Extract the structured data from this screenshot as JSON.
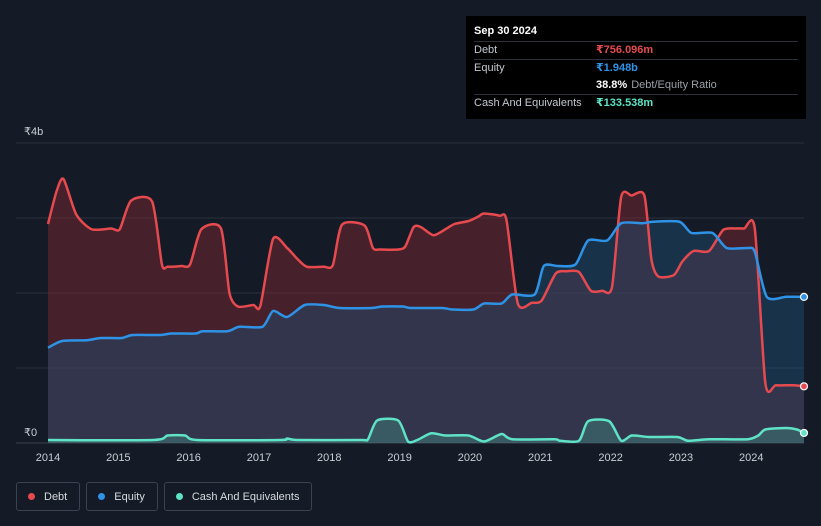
{
  "tooltip": {
    "date": "Sep 30 2024",
    "rows": [
      {
        "label": "Debt",
        "value": "₹756.096m",
        "color": "#e64a4f"
      },
      {
        "label": "Equity",
        "value": "₹1.948b",
        "color": "#2e93e6"
      },
      {
        "label": "",
        "value": "38.8%",
        "sub": "Debt/Equity Ratio",
        "color": "#ffffff"
      },
      {
        "label": "Cash And Equivalents",
        "value": "₹133.538m",
        "color": "#5ee3c6"
      }
    ]
  },
  "legend": [
    {
      "label": "Debt",
      "color": "#e64a4f"
    },
    {
      "label": "Equity",
      "color": "#2e93e6"
    },
    {
      "label": "Cash And Equivalents",
      "color": "#5ee3c6"
    }
  ],
  "chart_data": {
    "type": "area",
    "currency": "₹",
    "y_tick_labels": [
      {
        "value": 4,
        "label": "₹4b"
      },
      {
        "value": 0,
        "label": "₹0"
      }
    ],
    "ylim": [
      0,
      4
    ],
    "xlim": [
      2014.0,
      2024.75
    ],
    "x_ticks": [
      2014,
      2015,
      2016,
      2017,
      2018,
      2019,
      2020,
      2021,
      2022,
      2023,
      2024
    ],
    "grid": true,
    "legend_position": "bottom-left",
    "series": [
      {
        "name": "Debt",
        "color": "#e64a4f",
        "points": [
          [
            2014.0,
            2.92
          ],
          [
            2014.12,
            3.35
          ],
          [
            2014.22,
            3.52
          ],
          [
            2014.4,
            3.05
          ],
          [
            2014.62,
            2.85
          ],
          [
            2014.9,
            2.86
          ],
          [
            2015.02,
            2.85
          ],
          [
            2015.18,
            3.23
          ],
          [
            2015.48,
            3.22
          ],
          [
            2015.62,
            2.38
          ],
          [
            2015.7,
            2.35
          ],
          [
            2015.9,
            2.36
          ],
          [
            2016.02,
            2.38
          ],
          [
            2016.18,
            2.85
          ],
          [
            2016.46,
            2.86
          ],
          [
            2016.58,
            2.0
          ],
          [
            2016.7,
            1.82
          ],
          [
            2016.92,
            1.84
          ],
          [
            2017.02,
            1.83
          ],
          [
            2017.2,
            2.72
          ],
          [
            2017.4,
            2.6
          ],
          [
            2017.55,
            2.45
          ],
          [
            2017.68,
            2.35
          ],
          [
            2017.92,
            2.35
          ],
          [
            2018.05,
            2.37
          ],
          [
            2018.18,
            2.91
          ],
          [
            2018.5,
            2.9
          ],
          [
            2018.62,
            2.6
          ],
          [
            2018.72,
            2.58
          ],
          [
            2018.98,
            2.58
          ],
          [
            2019.08,
            2.62
          ],
          [
            2019.2,
            2.88
          ],
          [
            2019.3,
            2.88
          ],
          [
            2019.48,
            2.77
          ],
          [
            2019.65,
            2.85
          ],
          [
            2019.78,
            2.92
          ],
          [
            2019.98,
            2.96
          ],
          [
            2020.12,
            3.02
          ],
          [
            2020.2,
            3.06
          ],
          [
            2020.42,
            3.03
          ],
          [
            2020.52,
            2.97
          ],
          [
            2020.68,
            1.86
          ],
          [
            2020.88,
            1.87
          ],
          [
            2021.02,
            1.9
          ],
          [
            2021.22,
            2.26
          ],
          [
            2021.38,
            2.29
          ],
          [
            2021.55,
            2.28
          ],
          [
            2021.72,
            2.03
          ],
          [
            2021.88,
            2.03
          ],
          [
            2022.02,
            2.08
          ],
          [
            2022.15,
            3.28
          ],
          [
            2022.3,
            3.3
          ],
          [
            2022.48,
            3.3
          ],
          [
            2022.58,
            2.45
          ],
          [
            2022.68,
            2.22
          ],
          [
            2022.9,
            2.24
          ],
          [
            2023.02,
            2.42
          ],
          [
            2023.18,
            2.56
          ],
          [
            2023.4,
            2.56
          ],
          [
            2023.6,
            2.84
          ],
          [
            2023.78,
            2.86
          ],
          [
            2023.9,
            2.86
          ],
          [
            2024.05,
            2.86
          ],
          [
            2024.2,
            0.8
          ],
          [
            2024.35,
            0.77
          ],
          [
            2024.6,
            0.77
          ],
          [
            2024.75,
            0.756
          ]
        ]
      },
      {
        "name": "Equity",
        "color": "#2e93e6",
        "points": [
          [
            2014.0,
            1.27
          ],
          [
            2014.2,
            1.36
          ],
          [
            2014.55,
            1.37
          ],
          [
            2014.75,
            1.4
          ],
          [
            2015.05,
            1.4
          ],
          [
            2015.2,
            1.44
          ],
          [
            2015.6,
            1.44
          ],
          [
            2015.75,
            1.46
          ],
          [
            2016.1,
            1.46
          ],
          [
            2016.2,
            1.49
          ],
          [
            2016.55,
            1.49
          ],
          [
            2016.72,
            1.55
          ],
          [
            2017.05,
            1.55
          ],
          [
            2017.2,
            1.76
          ],
          [
            2017.4,
            1.68
          ],
          [
            2017.65,
            1.84
          ],
          [
            2017.92,
            1.84
          ],
          [
            2018.15,
            1.8
          ],
          [
            2018.6,
            1.8
          ],
          [
            2018.75,
            1.82
          ],
          [
            2019.05,
            1.82
          ],
          [
            2019.15,
            1.8
          ],
          [
            2019.6,
            1.8
          ],
          [
            2019.75,
            1.78
          ],
          [
            2020.05,
            1.78
          ],
          [
            2020.2,
            1.86
          ],
          [
            2020.45,
            1.86
          ],
          [
            2020.6,
            1.98
          ],
          [
            2020.92,
            1.98
          ],
          [
            2021.05,
            2.36
          ],
          [
            2021.25,
            2.36
          ],
          [
            2021.5,
            2.38
          ],
          [
            2021.68,
            2.7
          ],
          [
            2021.95,
            2.7
          ],
          [
            2022.15,
            2.93
          ],
          [
            2022.45,
            2.93
          ],
          [
            2022.6,
            2.95
          ],
          [
            2022.98,
            2.95
          ],
          [
            2023.15,
            2.8
          ],
          [
            2023.45,
            2.8
          ],
          [
            2023.65,
            2.6
          ],
          [
            2023.95,
            2.6
          ],
          [
            2024.05,
            2.55
          ],
          [
            2024.22,
            1.95
          ],
          [
            2024.5,
            1.95
          ],
          [
            2024.75,
            1.948
          ]
        ]
      },
      {
        "name": "Cash And Equivalents",
        "color": "#5ee3c6",
        "points": [
          [
            2014.0,
            0.04
          ],
          [
            2015.5,
            0.04
          ],
          [
            2015.7,
            0.1
          ],
          [
            2015.95,
            0.1
          ],
          [
            2016.12,
            0.04
          ],
          [
            2017.3,
            0.04
          ],
          [
            2017.4,
            0.06
          ],
          [
            2017.55,
            0.04
          ],
          [
            2018.45,
            0.04
          ],
          [
            2018.55,
            0.05
          ],
          [
            2018.68,
            0.3
          ],
          [
            2018.98,
            0.3
          ],
          [
            2019.12,
            0.02
          ],
          [
            2019.25,
            0.04
          ],
          [
            2019.45,
            0.13
          ],
          [
            2019.65,
            0.1
          ],
          [
            2019.98,
            0.1
          ],
          [
            2020.2,
            0.02
          ],
          [
            2020.45,
            0.12
          ],
          [
            2020.6,
            0.05
          ],
          [
            2021.2,
            0.05
          ],
          [
            2021.28,
            0.03
          ],
          [
            2021.55,
            0.03
          ],
          [
            2021.68,
            0.29
          ],
          [
            2021.98,
            0.29
          ],
          [
            2022.15,
            0.03
          ],
          [
            2022.3,
            0.1
          ],
          [
            2022.55,
            0.08
          ],
          [
            2022.95,
            0.08
          ],
          [
            2023.1,
            0.03
          ],
          [
            2023.4,
            0.05
          ],
          [
            2023.95,
            0.05
          ],
          [
            2024.1,
            0.1
          ],
          [
            2024.2,
            0.18
          ],
          [
            2024.5,
            0.2
          ],
          [
            2024.65,
            0.18
          ],
          [
            2024.75,
            0.134
          ]
        ]
      }
    ]
  }
}
